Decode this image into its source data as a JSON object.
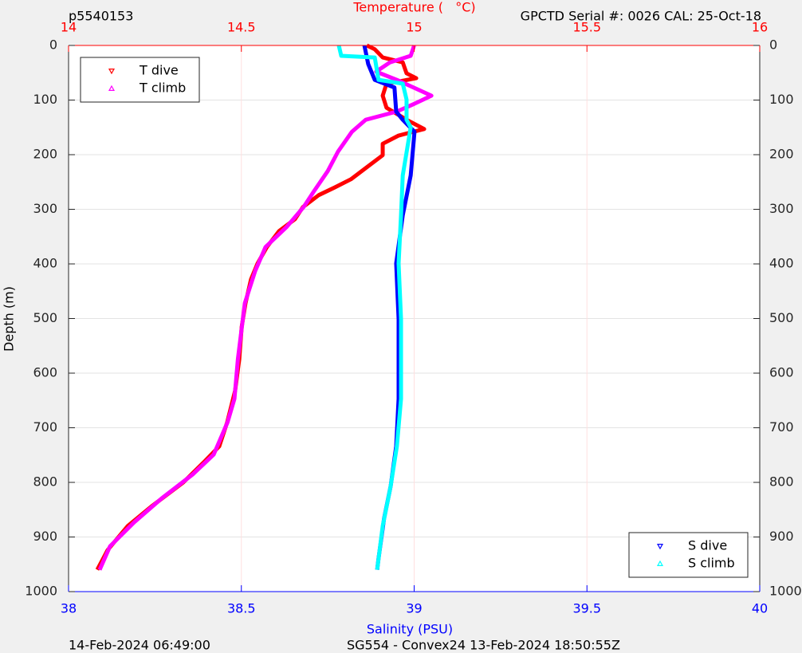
{
  "chart_data": {
    "type": "profile",
    "title_left": "p5540153",
    "title_right": "GPCTD Serial #: 0026 CAL: 25-Oct-18",
    "footer_left": "14-Feb-2024 06:49:00",
    "footer_right": "SG554 - Convex24 13-Feb-2024 18:50:55Z",
    "x2label": "Temperature (   °C)",
    "xlabel": "Salinity (PSU)",
    "ylabel": "Depth (m)",
    "x2lim": [
      14,
      16
    ],
    "x2ticks": [
      14,
      14.5,
      15,
      15.5,
      16
    ],
    "x2color": "#ff0000",
    "xlim": [
      38,
      40
    ],
    "xticks": [
      38,
      38.5,
      39,
      39.5,
      40
    ],
    "xcolor": "#0000ff",
    "ylim": [
      0,
      1000
    ],
    "yreverse": true,
    "yticks": [
      0,
      100,
      200,
      300,
      400,
      500,
      600,
      700,
      800,
      900,
      1000
    ],
    "grid": true,
    "legend_x2": "northwest",
    "legend_x": "southeast",
    "series": [
      {
        "name": "T dive",
        "color": "#ff0000",
        "marker": "triangle-down",
        "axis": "x2",
        "x": [
          14.863,
          14.886,
          14.909,
          14.967,
          14.978,
          15.006,
          14.92,
          14.909,
          14.92,
          14.978,
          15.029,
          14.955,
          14.909,
          14.909,
          14.863,
          14.817,
          14.77,
          14.724,
          14.678,
          14.655,
          14.609,
          14.574,
          14.547,
          14.528,
          14.512,
          14.501,
          14.494,
          14.482,
          14.459,
          14.436,
          14.39,
          14.332,
          14.24,
          14.171,
          14.113,
          14.083
        ],
        "y": [
          0,
          7,
          22,
          31,
          51,
          60,
          70,
          92,
          114,
          136,
          153,
          165,
          180,
          201,
          223,
          245,
          260,
          274,
          296,
          318,
          340,
          369,
          399,
          428,
          472,
          515,
          574,
          632,
          690,
          734,
          764,
          800,
          844,
          880,
          924,
          960
        ]
      },
      {
        "name": "T climb",
        "color": "#ff00ff",
        "marker": "triangle-up",
        "axis": "x2",
        "x": [
          15.0,
          14.99,
          14.93,
          14.89,
          14.95,
          15.05,
          15.0,
          14.95,
          14.86,
          14.82,
          14.78,
          14.75,
          14.71,
          14.68,
          14.63,
          14.57,
          14.54,
          14.51,
          14.49,
          14.48,
          14.46,
          14.42,
          14.36,
          14.27,
          14.19,
          14.12,
          14.09
        ],
        "y": [
          0,
          19,
          31,
          48,
          63,
          92,
          107,
          121,
          136,
          158,
          194,
          230,
          267,
          296,
          333,
          369,
          413,
          472,
          574,
          647,
          690,
          749,
          785,
          829,
          873,
          917,
          960
        ]
      },
      {
        "name": "S dive",
        "color": "#0000ff",
        "marker": "triangle-down",
        "axis": "x",
        "x": [
          38.856,
          38.867,
          38.886,
          38.943,
          38.948,
          38.967,
          39.001,
          38.99,
          38.967,
          38.948,
          38.955,
          38.955,
          38.948,
          38.932,
          38.913,
          38.897,
          38.893
        ],
        "y": [
          0,
          34,
          63,
          77,
          121,
          136,
          158,
          238,
          311,
          399,
          501,
          647,
          734,
          807,
          866,
          939,
          960
        ]
      },
      {
        "name": "S climb",
        "color": "#00ffff",
        "marker": "triangle-up",
        "axis": "x",
        "x": [
          38.782,
          38.789,
          38.886,
          38.897,
          38.967,
          38.978,
          38.978,
          38.99,
          38.967,
          38.962,
          38.955,
          38.962,
          38.962,
          38.95,
          38.932,
          38.909,
          38.893
        ],
        "y": [
          0,
          19,
          22,
          63,
          70,
          99,
          136,
          150,
          238,
          311,
          399,
          501,
          647,
          734,
          807,
          880,
          960
        ]
      }
    ]
  }
}
